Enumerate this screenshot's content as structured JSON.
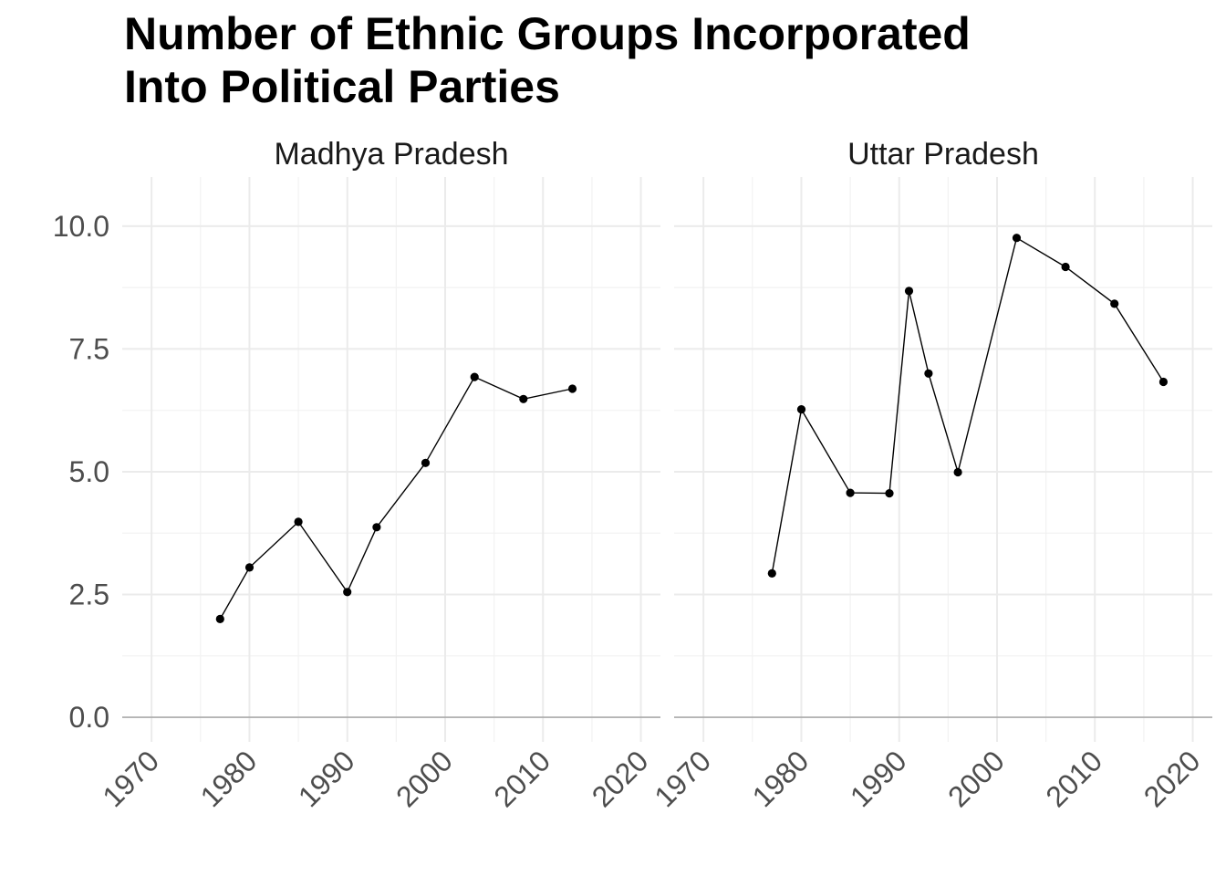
{
  "chart_data": {
    "type": "line",
    "title_lines": [
      "Number of Ethnic Groups Incorporated",
      "Into Political Parties"
    ],
    "xlabel": "",
    "ylabel": "",
    "xlim": [
      1967,
      2022
    ],
    "ylim": [
      -0.5,
      11.0
    ],
    "x_ticks": [
      1970,
      1980,
      1990,
      2000,
      2010,
      2020
    ],
    "y_ticks": [
      0.0,
      2.5,
      5.0,
      7.5,
      10.0
    ],
    "y_tick_labels": [
      "0.0",
      "2.5",
      "5.0",
      "7.5",
      "10.0"
    ],
    "grid": true,
    "facets": [
      {
        "label": "Madhya Pradesh",
        "x": [
          1977,
          1980,
          1985,
          1990,
          1993,
          1998,
          2003,
          2008,
          2013
        ],
        "y": [
          2.0,
          3.05,
          3.98,
          2.55,
          3.87,
          5.18,
          6.93,
          6.48,
          6.69
        ]
      },
      {
        "label": "Uttar Pradesh",
        "x": [
          1977,
          1980,
          1985,
          1989,
          1991,
          1993,
          1996,
          2002,
          2007,
          2012,
          2017
        ],
        "y": [
          2.93,
          6.27,
          4.57,
          4.56,
          8.68,
          7.0,
          4.99,
          9.76,
          9.17,
          8.42,
          6.83
        ]
      }
    ]
  }
}
